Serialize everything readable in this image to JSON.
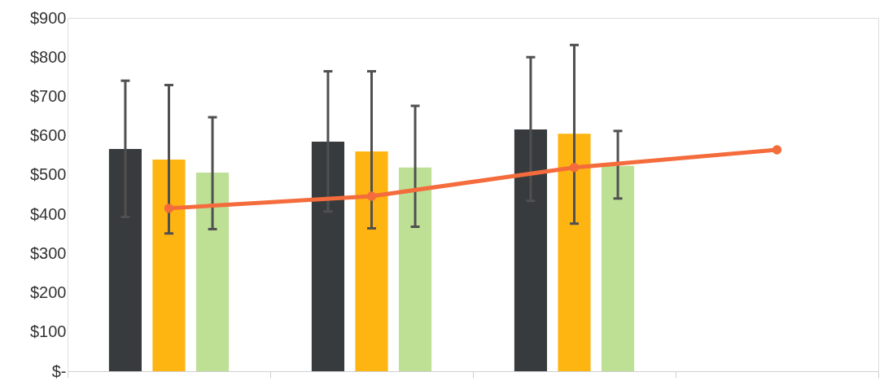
{
  "chart_data": {
    "type": "bar",
    "categories": [
      null,
      null,
      null,
      null
    ],
    "series": [
      {
        "color": "#373b3e",
        "values": [
          566,
          585,
          616,
          null
        ],
        "errors": [
          [
            393,
            740
          ],
          [
            407,
            764
          ],
          [
            434,
            800
          ],
          null
        ]
      },
      {
        "color": "#ffb511",
        "values": [
          539,
          560,
          605,
          null
        ],
        "errors": [
          [
            351,
            729
          ],
          [
            364,
            764
          ],
          [
            376,
            831
          ],
          null
        ]
      },
      {
        "color": "#bde095",
        "values": [
          506,
          519,
          523,
          null
        ],
        "errors": [
          [
            362,
            647
          ],
          [
            368,
            676
          ],
          [
            440,
            612
          ],
          null
        ]
      },
      {
        "type": "line",
        "color": "#f46b3c",
        "values": [
          415,
          446,
          519,
          564
        ],
        "marker": "circle",
        "line_style": "solid"
      }
    ],
    "ylim": [
      0,
      900
    ],
    "yticks": [
      {
        "value": 0,
        "label": "$-"
      },
      {
        "value": 100,
        "label": "$100"
      },
      {
        "value": 200,
        "label": "$200"
      },
      {
        "value": 300,
        "label": "$300"
      },
      {
        "value": 400,
        "label": "$400"
      },
      {
        "value": 500,
        "label": "$500"
      },
      {
        "value": 600,
        "label": "$600"
      },
      {
        "value": 700,
        "label": "$700"
      },
      {
        "value": 800,
        "label": "$800"
      },
      {
        "value": 900,
        "label": "$900"
      }
    ],
    "tick_labels": "y",
    "grid": false
  }
}
